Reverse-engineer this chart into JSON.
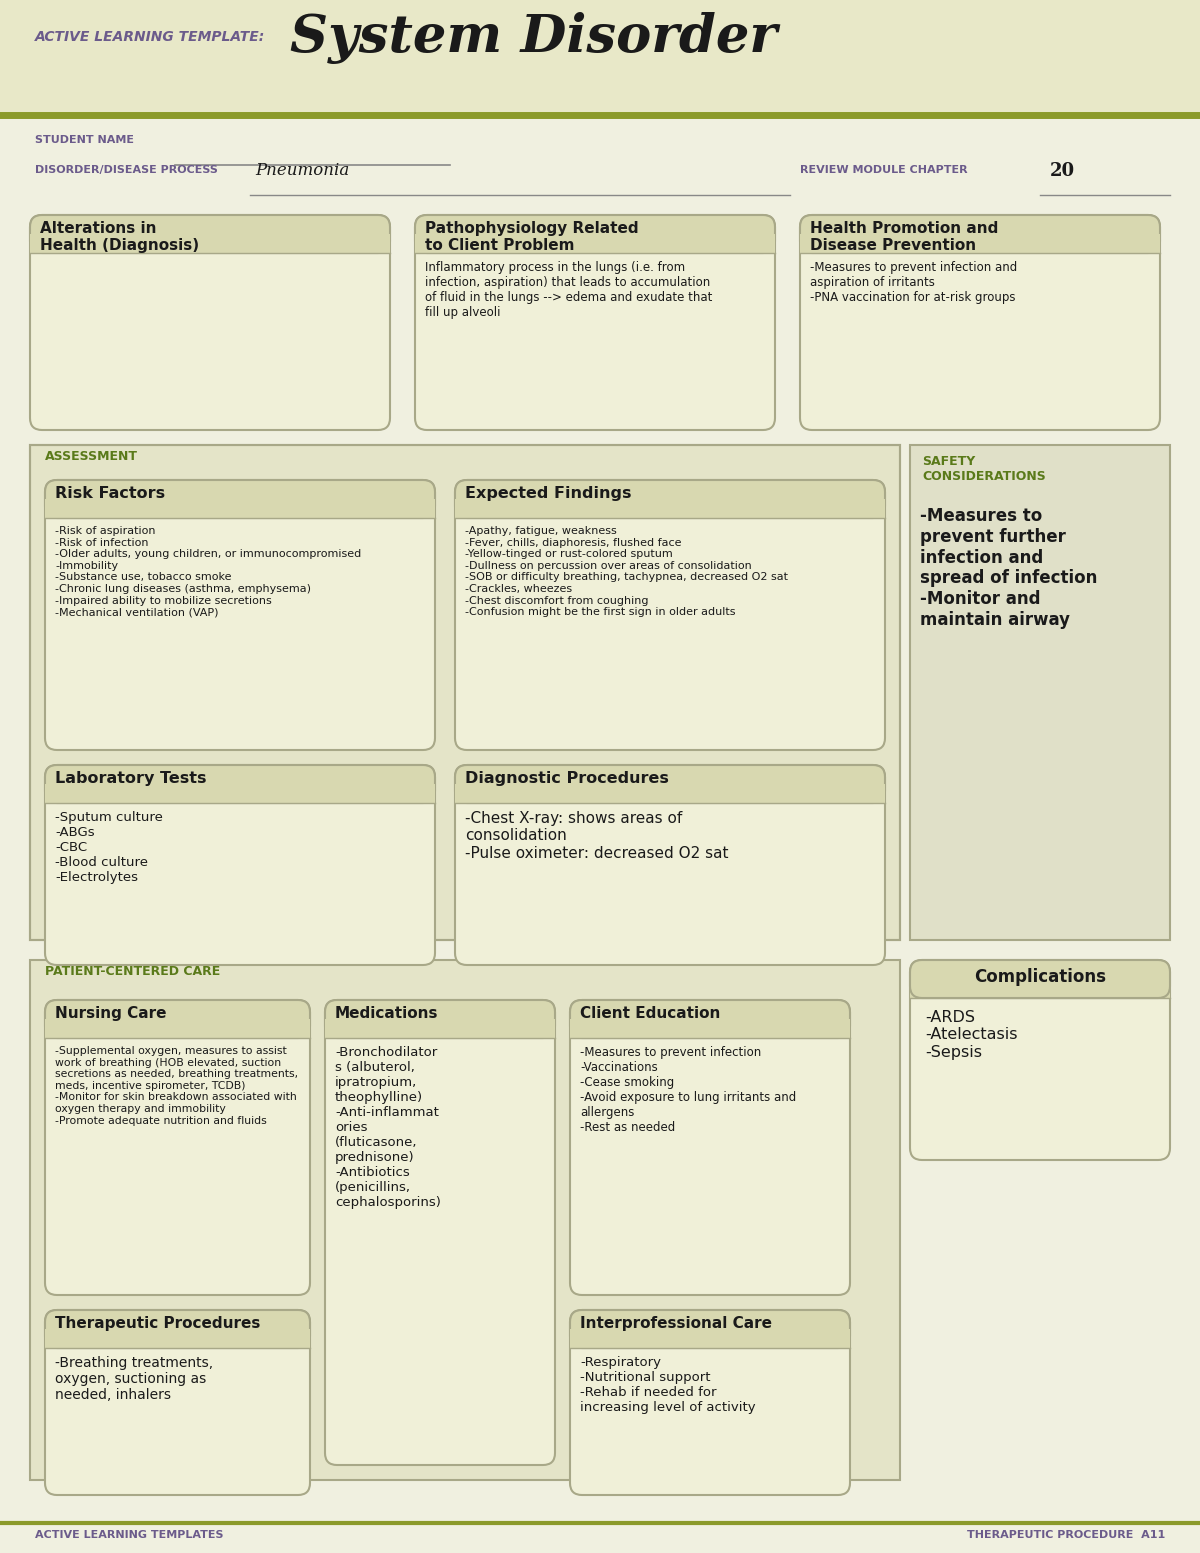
{
  "bg_color": "#f0f0e0",
  "header_bg": "#e8e8c8",
  "olive_line": "#8b9a2a",
  "title_label": "ACTIVE LEARNING TEMPLATE:",
  "title_main": "System Disorder",
  "student_name_label": "STUDENT NAME",
  "disorder_label": "DISORDER/DISEASE PROCESS",
  "disorder_value": "Pneumonia",
  "review_label": "REVIEW MODULE CHAPTER",
  "review_value": "20",
  "label_color": "#6b5b8b",
  "box_fill": "#f0f0d8",
  "box_header_fill": "#d8d8b0",
  "box_border": "#a8a888",
  "section_fill": "#e4e4c8",
  "section_label_color": "#5a7a1a",
  "dark_text": "#1a1a1a",
  "top_boxes": [
    {
      "title": "Alterations in\nHealth (Diagnosis)",
      "content": ""
    },
    {
      "title": "Pathophysiology Related\nto Client Problem",
      "content": "Inflammatory process in the lungs (i.e. from\ninfection, aspiration) that leads to accumulation\nof fluid in the lungs --> edema and exudate that\nfill up alveoli"
    },
    {
      "title": "Health Promotion and\nDisease Prevention",
      "content": "-Measures to prevent infection and\naspiration of irritants\n-PNA vaccination for at-risk groups"
    }
  ],
  "assessment_label": "ASSESSMENT",
  "safety_label": "SAFETY\nCONSIDERATIONS",
  "safety_content": "-Measures to\nprevent further\ninfection and\nspread of infection\n-Monitor and\nmaintain airway",
  "risk_factors_title": "Risk Factors",
  "risk_factors_content": "-Risk of aspiration\n-Risk of infection\n-Older adults, young children, or immunocompromised\n-Immobility\n-Substance use, tobacco smoke\n-Chronic lung diseases (asthma, emphysema)\n-Impaired ability to mobilize secretions\n-Mechanical ventilation (VAP)",
  "expected_findings_title": "Expected Findings",
  "expected_findings_content": "-Apathy, fatigue, weakness\n-Fever, chills, diaphoresis, flushed face\n-Yellow-tinged or rust-colored sputum\n-Dullness on percussion over areas of consolidation\n-SOB or difficulty breathing, tachypnea, decreased O2 sat\n-Crackles, wheezes\n-Chest discomfort from coughing\n-Confusion might be the first sign in older adults",
  "lab_tests_title": "Laboratory Tests",
  "lab_tests_content": "-Sputum culture\n-ABGs\n-CBC\n-Blood culture\n-Electrolytes",
  "diag_proc_title": "Diagnostic Procedures",
  "diag_proc_content": "-Chest X-ray: shows areas of\nconsolidation\n-Pulse oximeter: decreased O2 sat",
  "patient_care_label": "PATIENT-CENTERED CARE",
  "nursing_care_title": "Nursing Care",
  "nursing_care_content": "-Supplemental oxygen, measures to assist\nwork of breathing (HOB elevated, suction\nsecretions as needed, breathing treatments,\nmeds, incentive spirometer, TCDB)\n-Monitor for skin breakdown associated with\noxygen therapy and immobility\n-Promote adequate nutrition and fluids",
  "medications_title": "Medications",
  "medications_content": "-Bronchodilator\ns (albuterol,\nipratropium,\ntheophylline)\n-Anti-inflammat\nories\n(fluticasone,\nprednisone)\n-Antibiotics\n(penicillins,\ncephalosporins)",
  "client_edu_title": "Client Education",
  "client_edu_content": "-Measures to prevent infection\n-Vaccinations\n-Cease smoking\n-Avoid exposure to lung irritants and\nallergens\n-Rest as needed",
  "therapeutic_proc_title": "Therapeutic Procedures",
  "therapeutic_proc_content": "-Breathing treatments,\noxygen, suctioning as\nneeded, inhalers",
  "interpro_care_title": "Interprofessional Care",
  "interpro_care_content": "-Respiratory\n-Nutritional support\n-Rehab if needed for\nincreasing level of activity",
  "complications_title": "Complications",
  "complications_content": "-ARDS\n-Atelectasis\n-Sepsis",
  "footer_left": "ACTIVE LEARNING TEMPLATES",
  "footer_right": "THERAPEUTIC PROCEDURE  A11"
}
